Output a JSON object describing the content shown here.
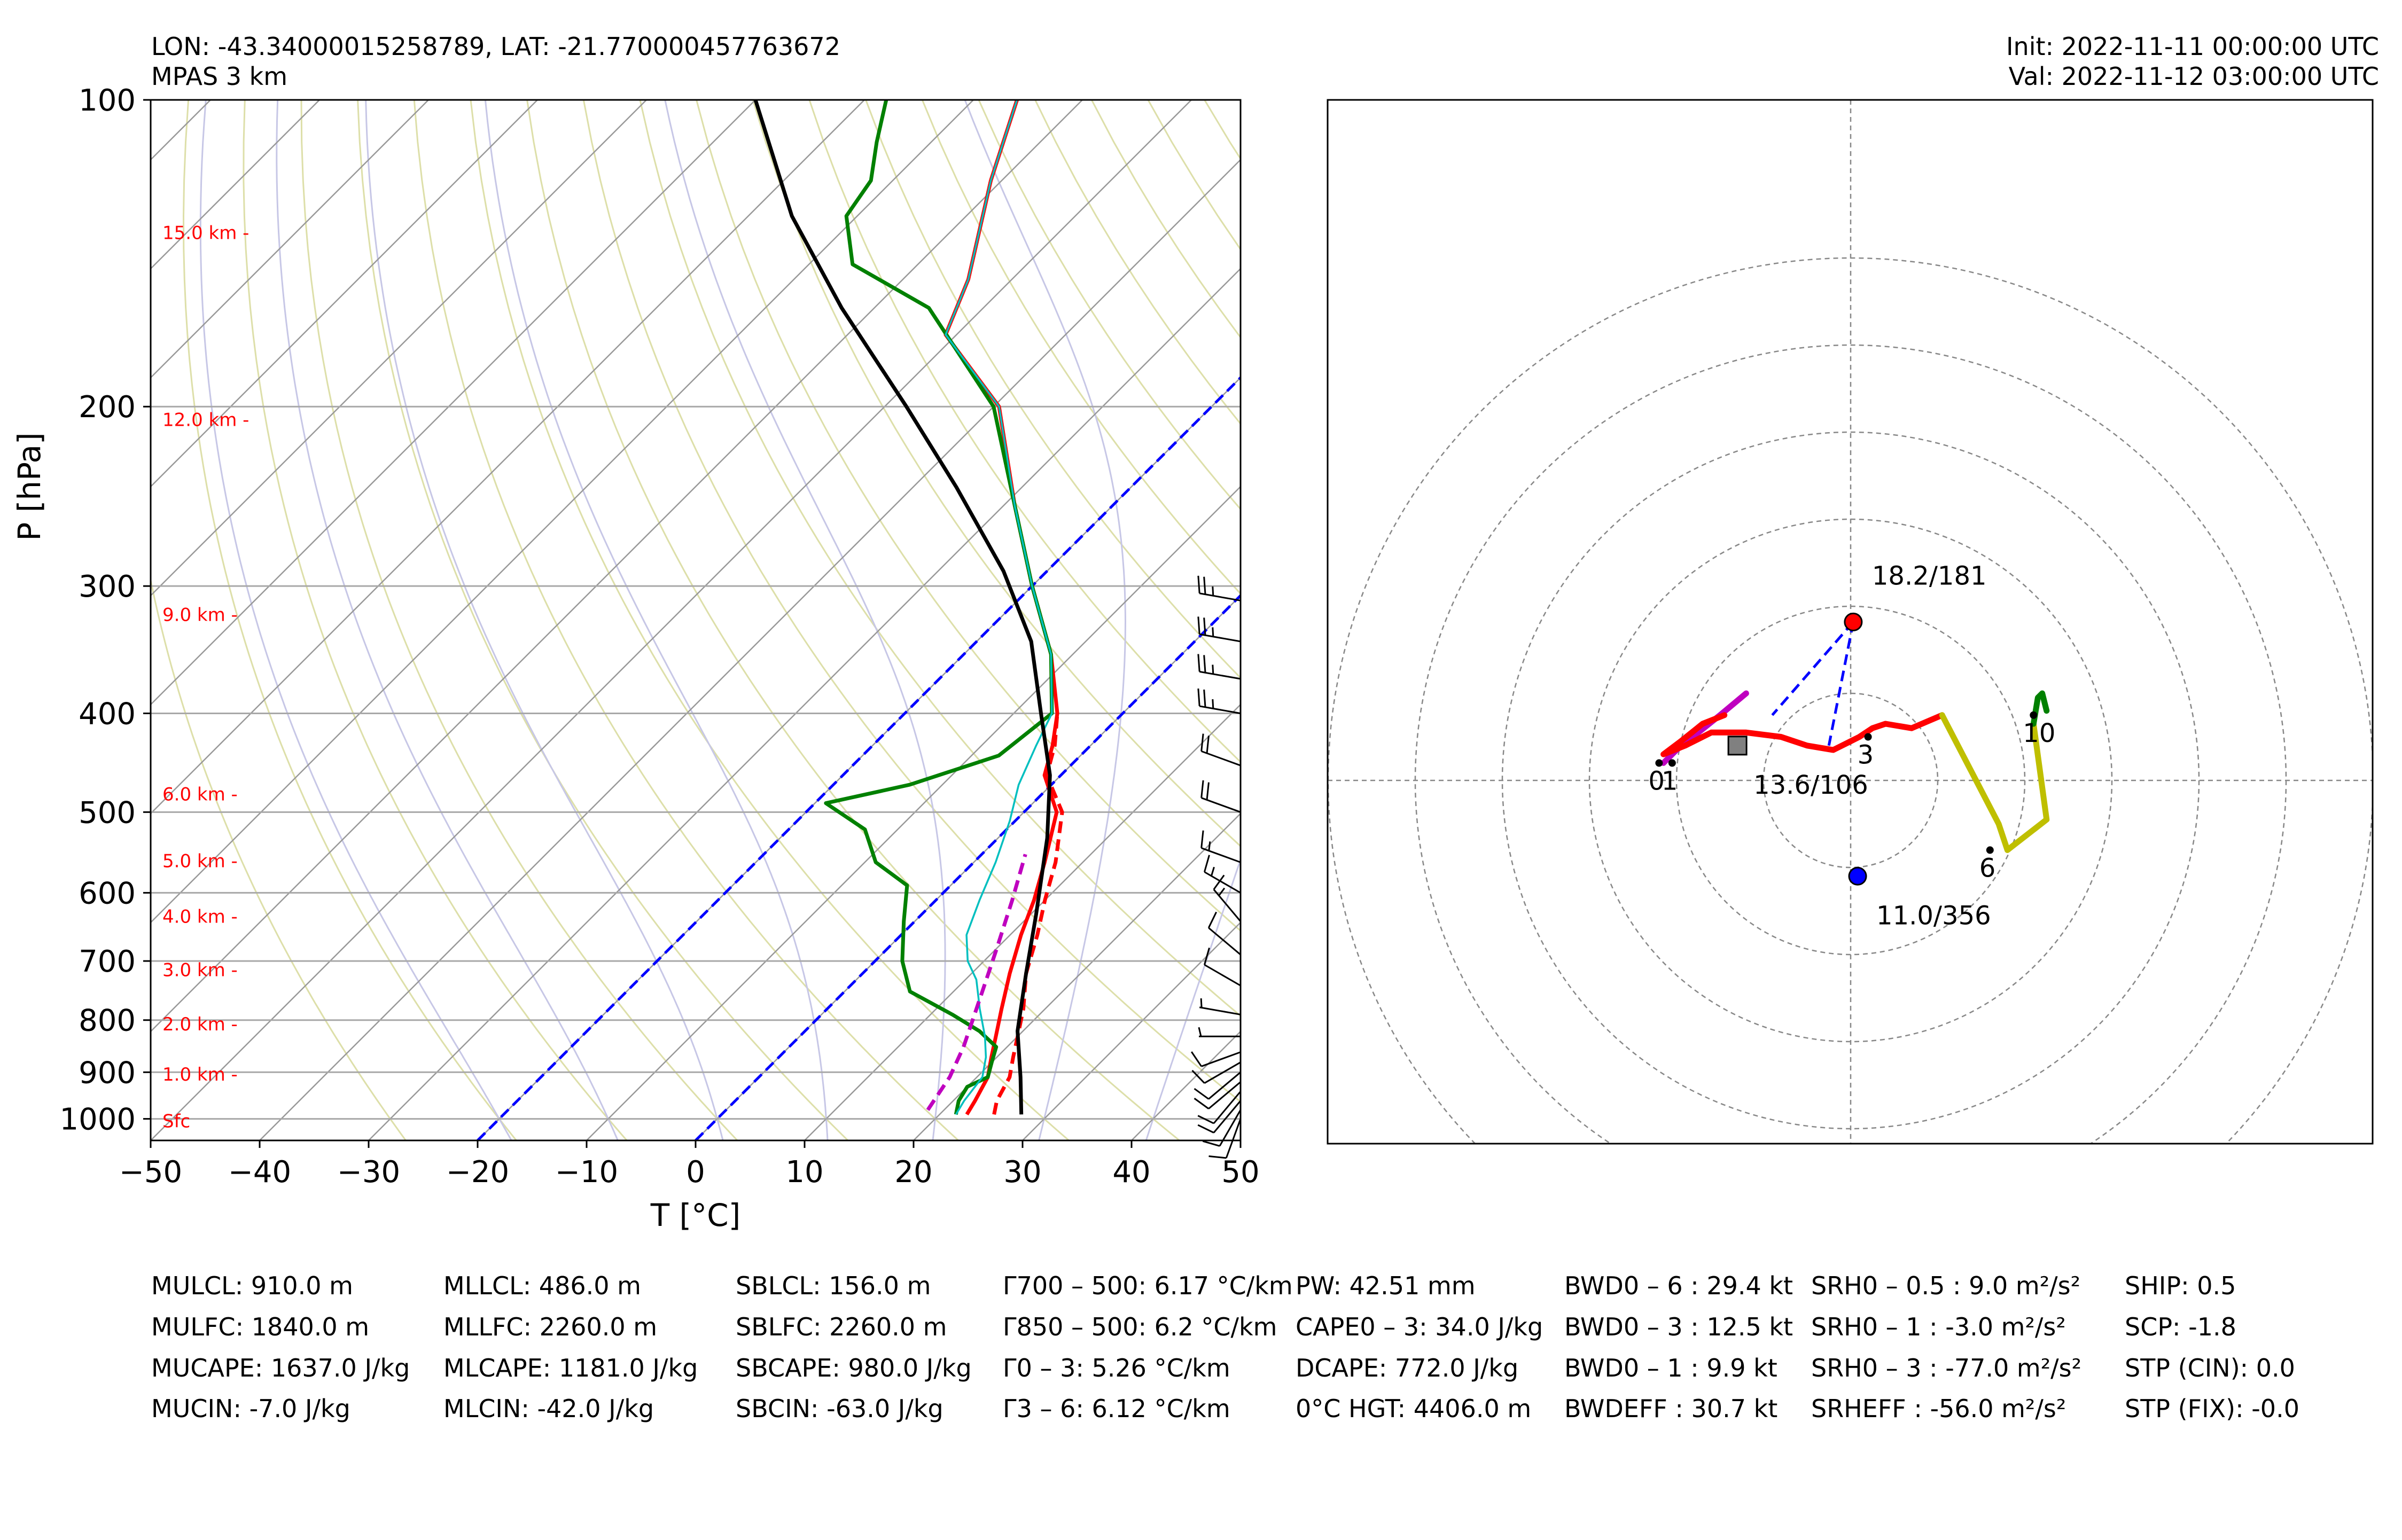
{
  "header": {
    "location": "LON: -43.34000015258789, LAT: -21.770000457763672",
    "model": "MPAS 3 km",
    "init": "Init: 2022-11-11 00:00:00 UTC",
    "valid": "Val: 2022-11-12 03:00:00 UTC"
  },
  "chart_data": [
    {
      "type": "line",
      "name": "skew-t",
      "xlabel": "T [°C]",
      "ylabel": "P [hPa]",
      "xlim": [
        -50,
        50
      ],
      "ylim": [
        1050,
        100
      ],
      "x_ticks": [
        -50,
        -40,
        -30,
        -20,
        -10,
        0,
        10,
        20,
        30,
        40,
        50
      ],
      "y_ticks": [
        100,
        200,
        300,
        400,
        500,
        600,
        700,
        800,
        900,
        1000
      ],
      "skew": 45,
      "grid": true,
      "height_labels": [
        {
          "p": 135,
          "text": "15.0 km -"
        },
        {
          "p": 206,
          "text": "12.0 km -"
        },
        {
          "p": 320,
          "text": "9.0 km -"
        },
        {
          "p": 480,
          "text": "6.0 km -"
        },
        {
          "p": 558,
          "text": "5.0 km -"
        },
        {
          "p": 633,
          "text": "4.0 km -"
        },
        {
          "p": 714,
          "text": "3.0 km -"
        },
        {
          "p": 807,
          "text": "2.0 km -"
        },
        {
          "p": 904,
          "text": "1.0 km -"
        },
        {
          "p": 1005,
          "text": "Sfc"
        }
      ],
      "freezing_isotherms": [
        0,
        -20
      ],
      "series": [
        {
          "role": "temperature",
          "color": "#ff0000",
          "points": [
            [
              22.5,
              990
            ],
            [
              22,
              960
            ],
            [
              21,
              910
            ],
            [
              19.5,
              870
            ],
            [
              18,
              830
            ],
            [
              16,
              780
            ],
            [
              13.5,
              720
            ],
            [
              11,
              660
            ],
            [
              9,
              610
            ],
            [
              6.5,
              560
            ],
            [
              3,
              500
            ],
            [
              -1.5,
              460
            ],
            [
              -3.5,
              430
            ],
            [
              -6,
              400
            ],
            [
              -12,
              350
            ],
            [
              -20,
              300
            ],
            [
              -29,
              250
            ],
            [
              -39.5,
              200
            ],
            [
              -51,
              170
            ],
            [
              -54,
              150
            ],
            [
              -61,
              120
            ],
            [
              -66,
              100
            ]
          ]
        },
        {
          "role": "virtual-temperature",
          "color": "#ff0000",
          "dashed": true,
          "points": [
            [
              25,
              990
            ],
            [
              24,
              960
            ],
            [
              23,
              910
            ],
            [
              21.5,
              870
            ],
            [
              20,
              830
            ],
            [
              18,
              780
            ],
            [
              15,
              720
            ],
            [
              12.5,
              660
            ],
            [
              10,
              610
            ],
            [
              7.5,
              560
            ],
            [
              3.5,
              500
            ],
            [
              -1.3,
              460
            ],
            [
              -3.3,
              430
            ],
            [
              -6,
              400
            ]
          ]
        },
        {
          "role": "dewpoint",
          "color": "#008000",
          "points": [
            [
              21.5,
              990
            ],
            [
              20.5,
              960
            ],
            [
              20,
              930
            ],
            [
              21,
              910
            ],
            [
              20,
              880
            ],
            [
              19,
              850
            ],
            [
              16,
              820
            ],
            [
              12,
              790
            ],
            [
              6,
              750
            ],
            [
              2.5,
              700
            ],
            [
              -1,
              640
            ],
            [
              -4,
              590
            ],
            [
              -9,
              560
            ],
            [
              -13,
              520
            ],
            [
              -19,
              490
            ],
            [
              -13,
              470
            ],
            [
              -7.5,
              440
            ],
            [
              -6.5,
              400
            ],
            [
              -12,
              350
            ],
            [
              -20,
              300
            ],
            [
              -29,
              250
            ],
            [
              -40,
              200
            ],
            [
              -55,
              160
            ],
            [
              -66,
              145
            ],
            [
              -71,
              130
            ],
            [
              -72,
              120
            ],
            [
              -75,
              110
            ],
            [
              -78,
              100
            ]
          ]
        },
        {
          "role": "wetbulb",
          "color": "#00bfbf",
          "points": [
            [
              21.5,
              990
            ],
            [
              21,
              960
            ],
            [
              20.5,
              910
            ],
            [
              19,
              870
            ],
            [
              17,
              830
            ],
            [
              14,
              780
            ],
            [
              11,
              730
            ],
            [
              8.5,
              700
            ],
            [
              6,
              660
            ],
            [
              4,
              610
            ],
            [
              2,
              560
            ],
            [
              -0.5,
              510
            ],
            [
              -3,
              470
            ],
            [
              -5,
              430
            ],
            [
              -6.5,
              400
            ],
            [
              -12,
              350
            ],
            [
              -20,
              300
            ],
            [
              -29,
              250
            ],
            [
              -39.5,
              200
            ],
            [
              -51,
              170
            ],
            [
              -54,
              150
            ],
            [
              -61,
              120
            ],
            [
              -66,
              100
            ]
          ]
        },
        {
          "role": "parcel",
          "color": "#000000",
          "points": [
            [
              27.5,
              990
            ],
            [
              24,
              910
            ],
            [
              19.5,
              820
            ],
            [
              15,
              720
            ],
            [
              10.5,
              630
            ],
            [
              4.5,
              530
            ],
            [
              -1,
              460
            ],
            [
              -7.5,
              400
            ],
            [
              -15,
              340
            ],
            [
              -24,
              290
            ],
            [
              -36,
              240
            ],
            [
              -48,
              200
            ],
            [
              -63,
              160
            ],
            [
              -76,
              130
            ],
            [
              -90,
              100
            ]
          ]
        },
        {
          "role": "downdraft",
          "color": "#bf00bf",
          "dashed": true,
          "points": [
            [
              18.5,
              980
            ],
            [
              17.5,
              910
            ],
            [
              16,
              850
            ],
            [
              13,
              760
            ],
            [
              10,
              680
            ],
            [
              7,
              610
            ],
            [
              4,
              550
            ]
          ]
        }
      ]
    },
    {
      "type": "scatter",
      "name": "hodograph",
      "range_rings_kt": [
        10,
        20,
        30,
        40,
        50,
        60
      ],
      "hodograph_points_kt": [
        [
          -21.5,
          2
        ],
        [
          -20,
          3.5
        ],
        [
          -17.5,
          5.5
        ],
        [
          -15,
          7.5
        ],
        [
          -12,
          10
        ],
        [
          -14.5,
          7.5
        ],
        [
          -17,
          6.5
        ],
        [
          -19.5,
          4.5
        ],
        [
          -21.5,
          3
        ],
        [
          -19,
          4
        ],
        [
          -16,
          5.5
        ],
        [
          -14,
          5.5
        ],
        [
          -12,
          5.5
        ],
        [
          -8,
          5
        ],
        [
          -5,
          4
        ],
        [
          -2,
          3.5
        ],
        [
          0,
          4.5
        ],
        [
          1,
          5
        ],
        [
          2.5,
          6
        ],
        [
          4,
          6.5
        ],
        [
          7,
          6
        ],
        [
          10.5,
          7.5
        ],
        [
          17,
          -5
        ],
        [
          18,
          -8
        ],
        [
          22.5,
          -4.5
        ],
        [
          21,
          6.5
        ],
        [
          21.5,
          9.5
        ],
        [
          22,
          10
        ],
        [
          22.5,
          8
        ]
      ],
      "segments": [
        {
          "name": "0-1 km",
          "color": "#ff0000",
          "from": 0,
          "to": 21
        },
        {
          "name": "1-3 km",
          "color": "#ff0000",
          "from": 0,
          "to": 8
        },
        {
          "name": "3-6 km",
          "color": "#bfbf00",
          "from": 21,
          "to": 25
        },
        {
          "name": "6-10 km",
          "color": "#008000",
          "from": 25,
          "to": 29
        }
      ],
      "height_marks": [
        {
          "text": "0",
          "u": -22,
          "v": 2
        },
        {
          "text": "1",
          "u": -20.5,
          "v": 2
        },
        {
          "text": "3",
          "u": 2,
          "v": 5
        },
        {
          "text": "6",
          "u": 16,
          "v": -8
        },
        {
          "text": "10",
          "u": 21,
          "v": 7.5
        }
      ],
      "storm_motion": [
        {
          "label": "18.2/181",
          "u": 0.3,
          "v": 18.2,
          "color": "#ff0000"
        },
        {
          "label": "11.0/356",
          "u": 0.8,
          "v": -11.0,
          "color": "#0000ff"
        }
      ],
      "mean_wind": {
        "label": "13.6/106",
        "u": -13,
        "v": 4,
        "color": "#808080"
      },
      "critical_angle_lines": [
        [
          [
            0.3,
            18.2
          ],
          [
            -9,
            7.5
          ]
        ],
        [
          [
            0.3,
            18.2
          ],
          [
            -2.5,
            4
          ]
        ]
      ]
    }
  ],
  "indices": [
    [
      "MULCL: 910.0 m",
      "MULFC: 1840.0 m",
      "MUCAPE: 1637.0 J/kg",
      "MUCIN: -7.0 J/kg"
    ],
    [
      "MLLCL: 486.0 m",
      "MLLFC: 2260.0 m",
      "MLCAPE: 1181.0 J/kg",
      "MLCIN: -42.0 J/kg"
    ],
    [
      "SBLCL: 156.0 m",
      "SBLFC: 2260.0 m",
      "SBCAPE: 980.0 J/kg",
      "SBCIN: -63.0 J/kg"
    ],
    [
      "Γ700 – 500: 6.17 °C/km",
      "Γ850 – 500: 6.2 °C/km",
      "Γ0 – 3: 5.26 °C/km",
      "Γ3 – 6: 6.12 °C/km"
    ],
    [
      "PW: 42.51 mm",
      "CAPE0 – 3: 34.0 J/kg",
      "DCAPE: 772.0 J/kg",
      "0°C HGT: 4406.0 m"
    ],
    [
      "BWD0 – 6 : 29.4 kt",
      "BWD0 – 3 : 12.5 kt",
      "BWD0 – 1 : 9.9 kt",
      "BWDEFF : 30.7 kt"
    ],
    [
      "SRH0 – 0.5 : 9.0 m²/s²",
      "SRH0 – 1 : -3.0 m²/s²",
      "SRH0 – 3 : -77.0 m²/s²",
      "SRHEFF : -56.0 m²/s²"
    ],
    [
      "SHIP: 0.5",
      "SCP: -1.8",
      "STP (CIN): 0.0",
      "STP (FIX): -0.0"
    ]
  ],
  "wind_barbs": [
    {
      "p": 1000,
      "speed": 10,
      "dir": 200
    },
    {
      "p": 980,
      "speed": 10,
      "dir": 210
    },
    {
      "p": 960,
      "speed": 10,
      "dir": 220
    },
    {
      "p": 940,
      "speed": 10,
      "dir": 220
    },
    {
      "p": 920,
      "speed": 10,
      "dir": 230
    },
    {
      "p": 900,
      "speed": 10,
      "dir": 230
    },
    {
      "p": 880,
      "speed": 10,
      "dir": 240
    },
    {
      "p": 860,
      "speed": 10,
      "dir": 250
    },
    {
      "p": 830,
      "speed": 5,
      "dir": 270
    },
    {
      "p": 790,
      "speed": 5,
      "dir": 280
    },
    {
      "p": 740,
      "speed": 10,
      "dir": 300
    },
    {
      "p": 690,
      "speed": 10,
      "dir": 310
    },
    {
      "p": 640,
      "speed": 15,
      "dir": 320
    },
    {
      "p": 600,
      "speed": 15,
      "dir": 300
    },
    {
      "p": 560,
      "speed": 15,
      "dir": 290
    },
    {
      "p": 500,
      "speed": 20,
      "dir": 290
    },
    {
      "p": 450,
      "speed": 20,
      "dir": 290
    },
    {
      "p": 400,
      "speed": 25,
      "dir": 280
    },
    {
      "p": 370,
      "speed": 25,
      "dir": 280
    },
    {
      "p": 340,
      "speed": 25,
      "dir": 280
    },
    {
      "p": 310,
      "speed": 25,
      "dir": 280
    }
  ],
  "colors": {
    "temperature": "#ff0000",
    "dewpoint": "#008000",
    "wetbulb": "#00bfbf",
    "parcel": "#000000",
    "downdraft": "#bf00bf",
    "isotherm": "#999999",
    "dry_adiabat": "#d9dca0",
    "moist_adiabat": "#c7c7e6",
    "freezing": "#0000ff",
    "height_label": "#ff0000"
  }
}
